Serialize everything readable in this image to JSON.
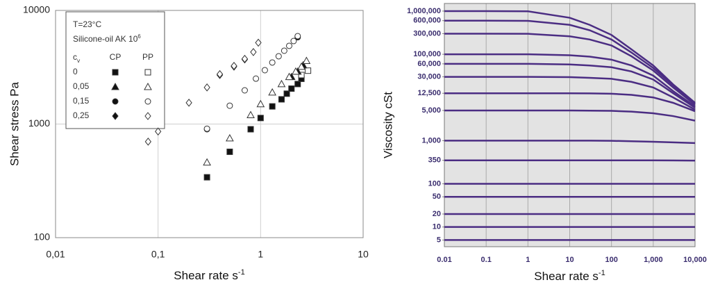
{
  "chart_data": [
    {
      "type": "scatter",
      "x_label": "Shear rate s",
      "x_label_sup": "-1",
      "y_label": "Shear stress Pa",
      "xscale": "log",
      "yscale": "log",
      "xlim": [
        0.01,
        10
      ],
      "ylim": [
        100,
        10000
      ],
      "xticks": [
        {
          "value": 0.01,
          "label": "0,01"
        },
        {
          "value": 0.1,
          "label": "0,1"
        },
        1,
        10
      ],
      "yticks": [
        100,
        1000,
        10000
      ],
      "xgrid": true,
      "ygrid": true,
      "legend": {
        "condition": "T=23°C",
        "material": "Silicone-oil AK 10",
        "material_sup": "6",
        "header": "c",
        "header_sub": "v",
        "columns": [
          "CP",
          "PP"
        ],
        "filled": [
          true,
          false
        ]
      },
      "series": [
        {
          "name": "0",
          "marker": "square",
          "data": [
            {
              "x": [
                0.3,
                0.5,
                0.8,
                1,
                1.3,
                1.6,
                1.8,
                2,
                2.3,
                2.5
              ],
              "values": [
                340,
                570,
                900,
                1130,
                1430,
                1650,
                1850,
                2050,
                2250,
                2500
              ]
            },
            {
              "x": [
                2.5,
                2.9
              ],
              "values": [
                2700,
                2950
              ]
            }
          ]
        },
        {
          "name": "0,05",
          "marker": "triangle",
          "data": [
            {
              "x": [
                2.0,
                2.3,
                2.6
              ],
              "values": [
                2600,
                2900,
                3300
              ]
            },
            {
              "x": [
                0.3,
                0.5,
                0.8,
                1,
                1.3,
                1.6,
                1.9,
                2.2,
                2.5,
                2.8
              ],
              "values": [
                460,
                750,
                1200,
                1500,
                1900,
                2250,
                2600,
                2900,
                3200,
                3600
              ]
            }
          ]
        },
        {
          "name": "0,15",
          "marker": "circle",
          "data": [
            {
              "x": [
                0.3,
                2.3
              ],
              "values": [
                900,
                5800
              ]
            },
            {
              "x": [
                0.3,
                0.5,
                0.7,
                0.9,
                1.1,
                1.3,
                1.5,
                1.7,
                1.9,
                2.1,
                2.3
              ],
              "values": [
                910,
                1450,
                1980,
                2510,
                2980,
                3480,
                3950,
                4420,
                4880,
                5380,
                5940
              ]
            }
          ]
        },
        {
          "name": "0,25",
          "marker": "diamond",
          "data": [
            {
              "x": [
                0.4,
                0.55,
                0.7
              ],
              "values": [
                2700,
                3200,
                3700
              ]
            },
            {
              "x": [
                0.08,
                0.1,
                0.2,
                0.3,
                0.4,
                0.55,
                0.7,
                0.85,
                0.95
              ],
              "values": [
                700,
                860,
                1540,
                2100,
                2750,
                3250,
                3750,
                4300,
                5200
              ]
            }
          ]
        }
      ]
    },
    {
      "type": "line",
      "x_label": "Shear rate s",
      "x_label_sup": "-1",
      "y_label": "Viscosity cSt",
      "xscale": "log",
      "yscale": "log",
      "xlim": [
        0.01,
        10000
      ],
      "ylim": [
        3.5,
        1500000
      ],
      "xticks": [
        0.01,
        0.1,
        1,
        10,
        100,
        {
          "value": 1000,
          "label": "1,000"
        },
        {
          "value": 10000,
          "label": "10,000"
        }
      ],
      "yticks": [
        5,
        10,
        20,
        50,
        100,
        350,
        {
          "value": 1000,
          "label": "1,000"
        },
        {
          "value": 5000,
          "label": "5,000"
        },
        {
          "value": 12500,
          "label": "12,500"
        },
        {
          "value": 30000,
          "label": "30,000"
        },
        {
          "value": 60000,
          "label": "60,000"
        },
        {
          "value": 100000,
          "label": "100,000"
        },
        {
          "value": 300000,
          "label": "300,000"
        },
        {
          "value": 600000,
          "label": "600,000"
        },
        {
          "value": 1000000,
          "label": "1,000,000"
        }
      ],
      "xgrid": true,
      "ygrid": false,
      "color": "#4b2d83",
      "x": [
        0.01,
        0.1,
        1,
        10,
        30,
        100,
        300,
        1000,
        3000,
        10000
      ],
      "series": [
        {
          "values": [
            1000000,
            1000000,
            990000,
            700000,
            480000,
            280000,
            130000,
            55000,
            20000,
            7500
          ]
        },
        {
          "values": [
            600000,
            600000,
            595000,
            480000,
            360000,
            220000,
            110000,
            48000,
            19000,
            7200
          ]
        },
        {
          "values": [
            300000,
            300000,
            298000,
            260000,
            220000,
            160000,
            90000,
            42000,
            17000,
            6800
          ]
        },
        {
          "values": [
            100000,
            100000,
            100000,
            95000,
            88000,
            75000,
            55000,
            32000,
            14000,
            6200
          ]
        },
        {
          "values": [
            60000,
            60000,
            60000,
            58000,
            55000,
            50000,
            40000,
            26000,
            12500,
            5800
          ]
        },
        {
          "values": [
            30000,
            30000,
            30000,
            29500,
            28500,
            27000,
            23000,
            17000,
            10000,
            5200
          ]
        },
        {
          "values": [
            12500,
            12500,
            12500,
            12500,
            12400,
            12200,
            11500,
            10000,
            7500,
            4800
          ]
        },
        {
          "values": [
            5000,
            5000,
            5000,
            5000,
            4950,
            4900,
            4700,
            4300,
            3700,
            2900
          ]
        },
        {
          "values": [
            1000,
            1000,
            1000,
            1000,
            1000,
            990,
            970,
            940,
            910,
            880
          ]
        },
        {
          "values": [
            350,
            350,
            350,
            350,
            350,
            350,
            350,
            350,
            348,
            345
          ]
        },
        {
          "values": [
            100,
            100,
            100,
            100,
            100,
            100,
            100,
            100,
            100,
            100
          ]
        },
        {
          "values": [
            50,
            50,
            50,
            50,
            50,
            50,
            50,
            50,
            50,
            50
          ]
        },
        {
          "values": [
            20,
            20,
            20,
            20,
            20,
            20,
            20,
            20,
            20,
            20
          ]
        },
        {
          "values": [
            10,
            10,
            10,
            10,
            10,
            10,
            10,
            10,
            10,
            10
          ]
        },
        {
          "values": [
            5,
            5,
            5,
            5,
            5,
            5,
            5,
            5,
            5,
            5
          ]
        }
      ]
    }
  ]
}
